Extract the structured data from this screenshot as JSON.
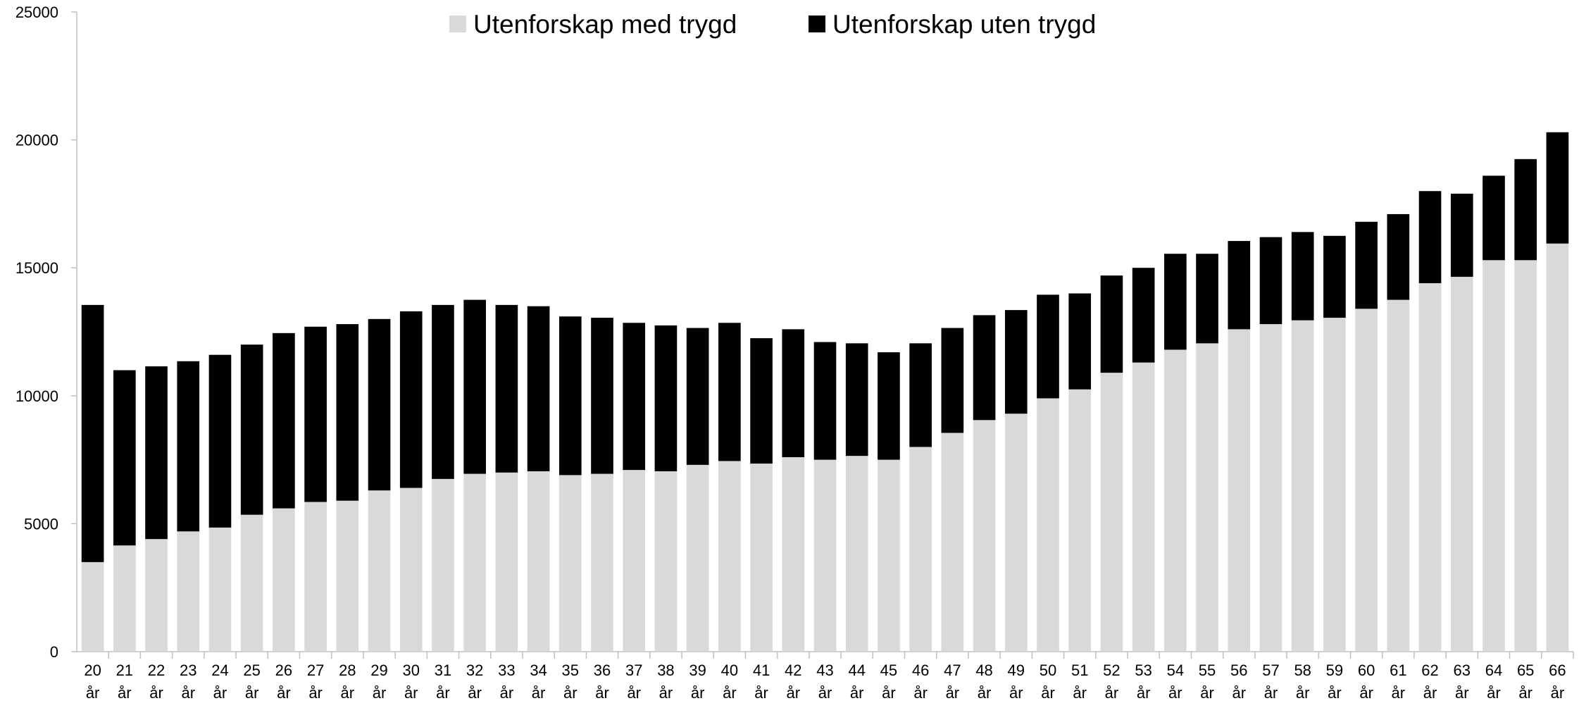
{
  "chart_data": {
    "type": "stacked_bar",
    "categories": [
      "20 år",
      "21 år",
      "22 år",
      "23 år",
      "24 år",
      "25 år",
      "26 år",
      "27 år",
      "28 år",
      "29 år",
      "30 år",
      "31 år",
      "32 år",
      "33 år",
      "34 år",
      "35 år",
      "36 år",
      "37 år",
      "38 år",
      "39 år",
      "40 år",
      "41 år",
      "42 år",
      "43 år",
      "44 år",
      "45 år",
      "46 år",
      "47 år",
      "48 år",
      "49 år",
      "50 år",
      "51 år",
      "52 år",
      "53 år",
      "54 år",
      "55 år",
      "56 år",
      "57 år",
      "58 år",
      "59 år",
      "60 år",
      "61 år",
      "62 år",
      "63 år",
      "64 år",
      "65 år",
      "66 år"
    ],
    "series": [
      {
        "name": "Utenforskap med trygd",
        "color": "#d9d9d9",
        "values": [
          3500,
          4150,
          4400,
          4700,
          4850,
          5350,
          5600,
          5850,
          5900,
          6300,
          6400,
          6750,
          6950,
          7000,
          7050,
          6900,
          6950,
          7100,
          7050,
          7300,
          7450,
          7350,
          7600,
          7500,
          7650,
          7500,
          8000,
          8550,
          9050,
          9300,
          9900,
          10250,
          10900,
          11300,
          11800,
          12050,
          12600,
          12800,
          12950,
          13050,
          13400,
          13750,
          14400,
          14650,
          15300,
          15300,
          15950
        ]
      },
      {
        "name": "Utenforskap uten trygd",
        "color": "#000000",
        "values": [
          10050,
          6850,
          6750,
          6650,
          6750,
          6650,
          6850,
          6850,
          6900,
          6700,
          6900,
          6800,
          6800,
          6550,
          6450,
          6200,
          6100,
          5750,
          5700,
          5350,
          5400,
          4900,
          5000,
          4600,
          4400,
          4200,
          4050,
          4100,
          4100,
          4050,
          4050,
          3750,
          3800,
          3700,
          3750,
          3500,
          3450,
          3400,
          3450,
          3200,
          3400,
          3350,
          3600,
          3250,
          3300,
          3950,
          4350
        ]
      }
    ],
    "ylim": [
      0,
      25000
    ],
    "yticks": [
      0,
      5000,
      10000,
      15000,
      20000,
      25000
    ],
    "grid": false,
    "legend": "top"
  }
}
